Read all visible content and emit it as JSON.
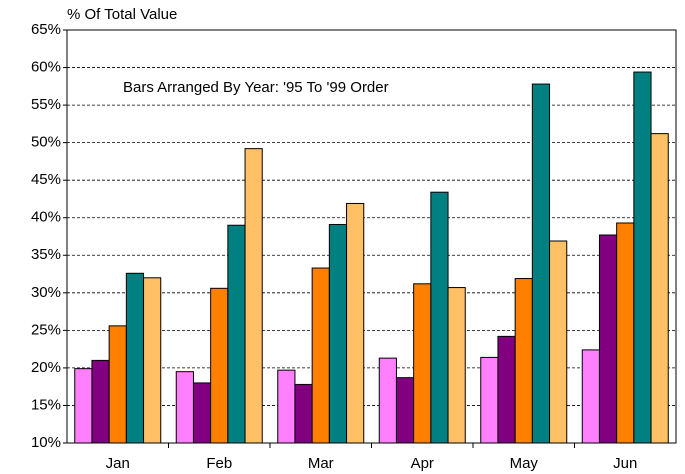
{
  "chart_data": {
    "type": "bar",
    "ylabel": "% Of Total Value",
    "annotation": "Bars Arranged By Year:  '95 To '99 Order",
    "categories": [
      "Jan",
      "Feb",
      "Mar",
      "Apr",
      "May",
      "Jun"
    ],
    "series": [
      {
        "color": "#ff80ff",
        "values": [
          19.9,
          19.5,
          19.7,
          21.3,
          21.4,
          22.4
        ]
      },
      {
        "color": "#800080",
        "values": [
          21.0,
          18.0,
          17.8,
          18.7,
          24.2,
          37.7
        ]
      },
      {
        "color": "#ff8000",
        "values": [
          25.6,
          30.6,
          33.3,
          31.2,
          31.9,
          39.3
        ]
      },
      {
        "color": "#008080",
        "values": [
          32.6,
          39.0,
          39.1,
          43.4,
          57.8,
          59.4
        ]
      },
      {
        "color": "#ffc066",
        "values": [
          32.0,
          49.2,
          41.9,
          30.7,
          36.9,
          51.2
        ]
      }
    ],
    "ylim": [
      10,
      65
    ],
    "yticks": [
      {
        "value": 10,
        "label": "10%"
      },
      {
        "value": 15,
        "label": "15%"
      },
      {
        "value": 20,
        "label": "20%"
      },
      {
        "value": 25,
        "label": "25%"
      },
      {
        "value": 30,
        "label": "30%"
      },
      {
        "value": 35,
        "label": "35%"
      },
      {
        "value": 40,
        "label": "40%"
      },
      {
        "value": 45,
        "label": "45%"
      },
      {
        "value": 50,
        "label": "50%"
      },
      {
        "value": 55,
        "label": "55%"
      },
      {
        "value": 60,
        "label": "60%"
      },
      {
        "value": 65,
        "label": "65%"
      }
    ],
    "grid": true
  }
}
